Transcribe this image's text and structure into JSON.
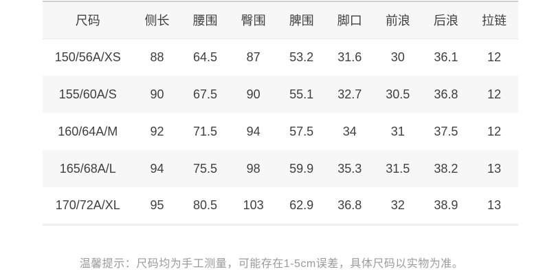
{
  "chart_data": {
    "type": "table",
    "columns": [
      "尺码",
      "侧长",
      "腰围",
      "臀围",
      "脾围",
      "脚口",
      "前浪",
      "后浪",
      "拉链"
    ],
    "rows": [
      [
        "150/56A/XS",
        "88",
        "64.5",
        "87",
        "53.2",
        "31.6",
        "30",
        "36.1",
        "12"
      ],
      [
        "155/60A/S",
        "90",
        "67.5",
        "90",
        "55.1",
        "32.7",
        "30.5",
        "36.8",
        "12"
      ],
      [
        "160/64A/M",
        "92",
        "71.5",
        "94",
        "57.5",
        "34",
        "31",
        "37.5",
        "12"
      ],
      [
        "165/68A/L",
        "94",
        "75.5",
        "98",
        "59.9",
        "35.3",
        "31.5",
        "38.2",
        "13"
      ],
      [
        "170/72A/XL",
        "95",
        "80.5",
        "103",
        "62.9",
        "36.8",
        "32",
        "38.9",
        "13"
      ]
    ],
    "note": "温馨提示：尺码均为手工测量，可能存在1-5cm误差，具体尺码以实物为准。"
  },
  "colors": {
    "stripe_bg": "#f7f7f7",
    "table_top_border": "#cfcfcf",
    "header_bottom_border": "#ebebeb",
    "table_bottom_border": "#efefef",
    "text": "#3f3f3f",
    "note_text": "#9b9b9b"
  }
}
